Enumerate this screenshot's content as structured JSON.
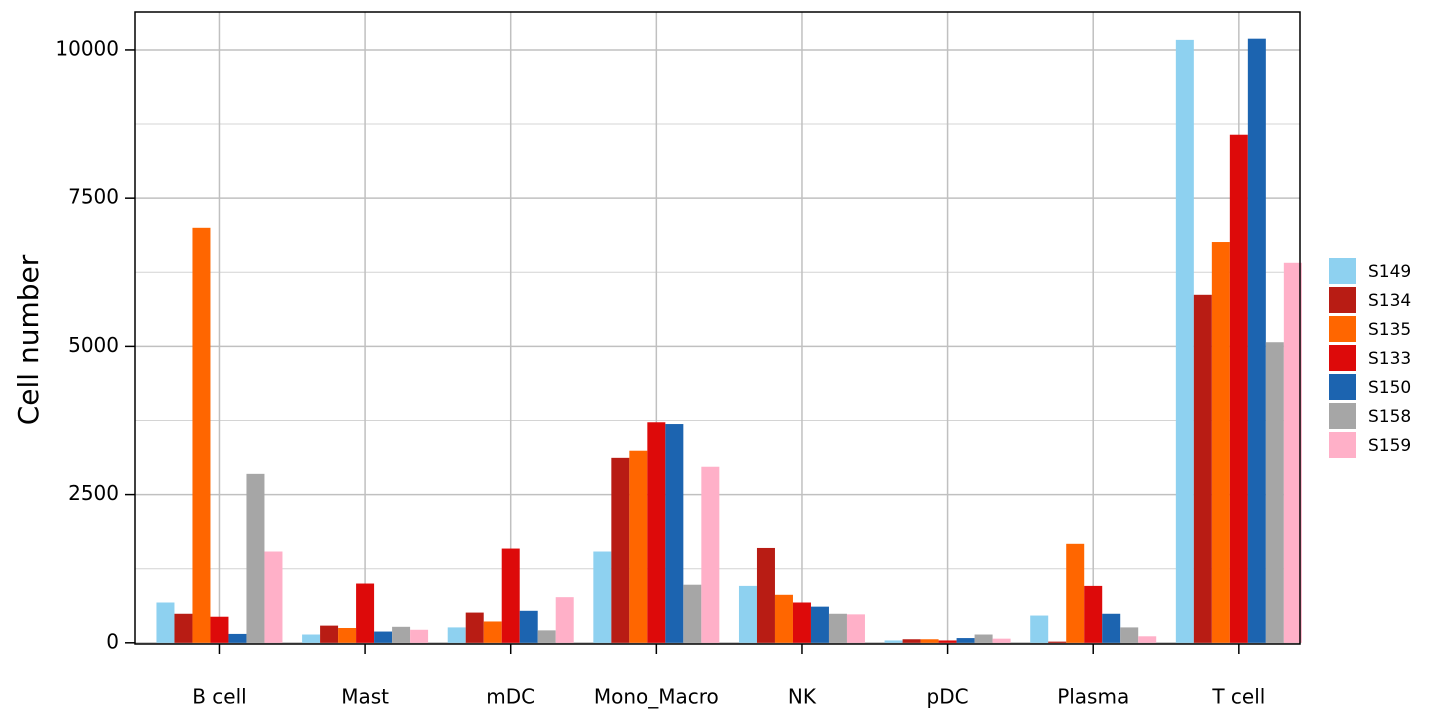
{
  "chart_data": {
    "type": "bar",
    "y_label": "Cell number",
    "categories": [
      "B cell",
      "Mast",
      "mDC",
      "Mono_Macro",
      "NK",
      "pDC",
      "Plasma",
      "T cell"
    ],
    "series": [
      {
        "name": "S149",
        "color": "#8ed1f0",
        "values": [
          680,
          140,
          260,
          1540,
          960,
          40,
          460,
          10170
        ]
      },
      {
        "name": "S134",
        "color": "#b81c14",
        "values": [
          490,
          290,
          510,
          3120,
          1600,
          60,
          20,
          5870
        ]
      },
      {
        "name": "S135",
        "color": "#ff6600",
        "values": [
          7000,
          250,
          360,
          3240,
          810,
          60,
          1670,
          6760
        ]
      },
      {
        "name": "S133",
        "color": "#dd0a0a",
        "values": [
          440,
          1000,
          1590,
          3720,
          680,
          40,
          960,
          8570
        ]
      },
      {
        "name": "S150",
        "color": "#1c64b0",
        "values": [
          150,
          190,
          540,
          3690,
          610,
          80,
          490,
          10190
        ]
      },
      {
        "name": "S158",
        "color": "#a6a6a6",
        "values": [
          2850,
          270,
          210,
          980,
          490,
          140,
          260,
          5070
        ]
      },
      {
        "name": "S159",
        "color": "#ffb0c8",
        "values": [
          1540,
          220,
          770,
          2970,
          480,
          70,
          110,
          6410
        ]
      }
    ],
    "ylim": [
      -20,
      10640
    ],
    "yticks": [
      0,
      2500,
      5000,
      7500,
      10000
    ],
    "yminor": [
      1250,
      3750,
      6250,
      8750
    ],
    "grid": true,
    "legend": "right"
  }
}
